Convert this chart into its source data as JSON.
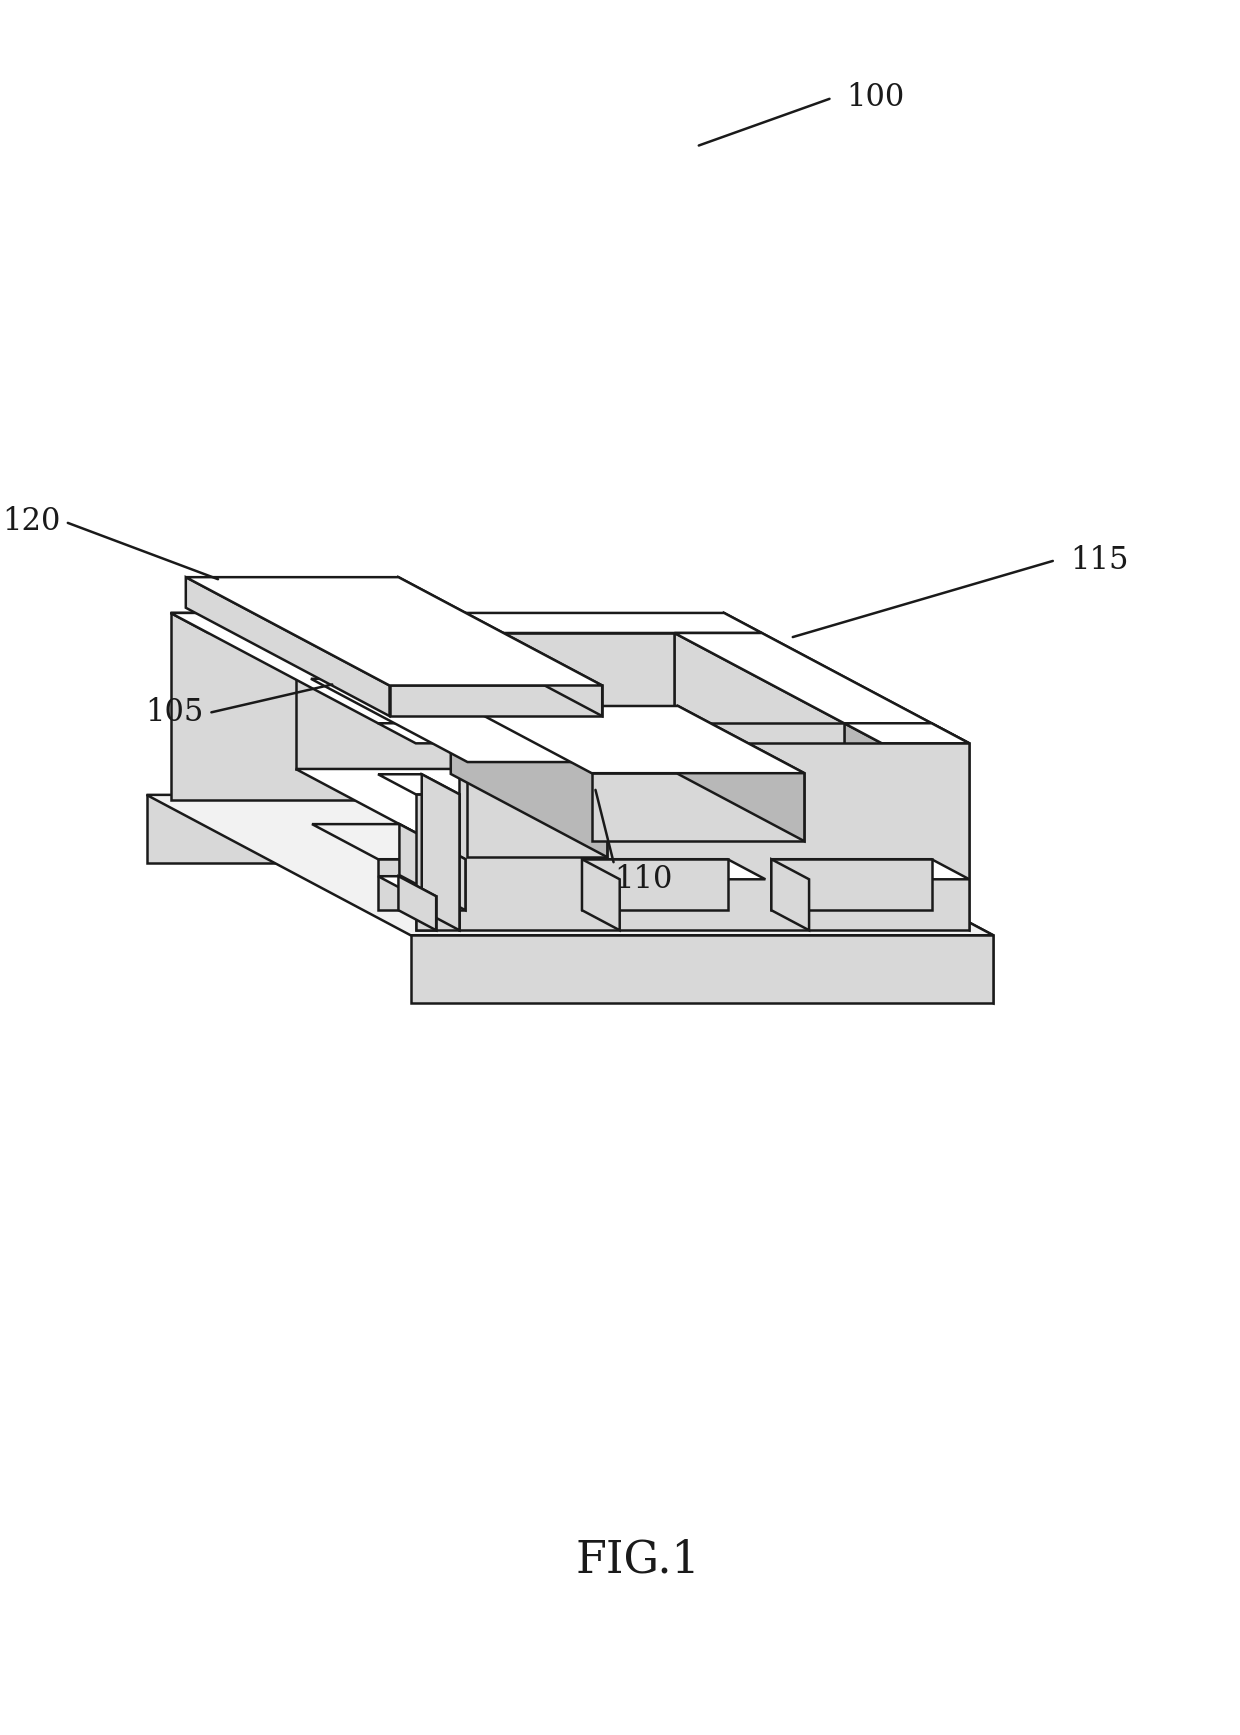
{
  "background_color": "#ffffff",
  "line_color": "#1a1a1a",
  "line_width": 1.8,
  "white": "#ffffff",
  "light_gray": "#f2f2f2",
  "mid_gray": "#d8d8d8",
  "dark_gray": "#b8b8b8",
  "title": "FIG.1",
  "title_fontsize": 32,
  "label_fontsize": 22
}
